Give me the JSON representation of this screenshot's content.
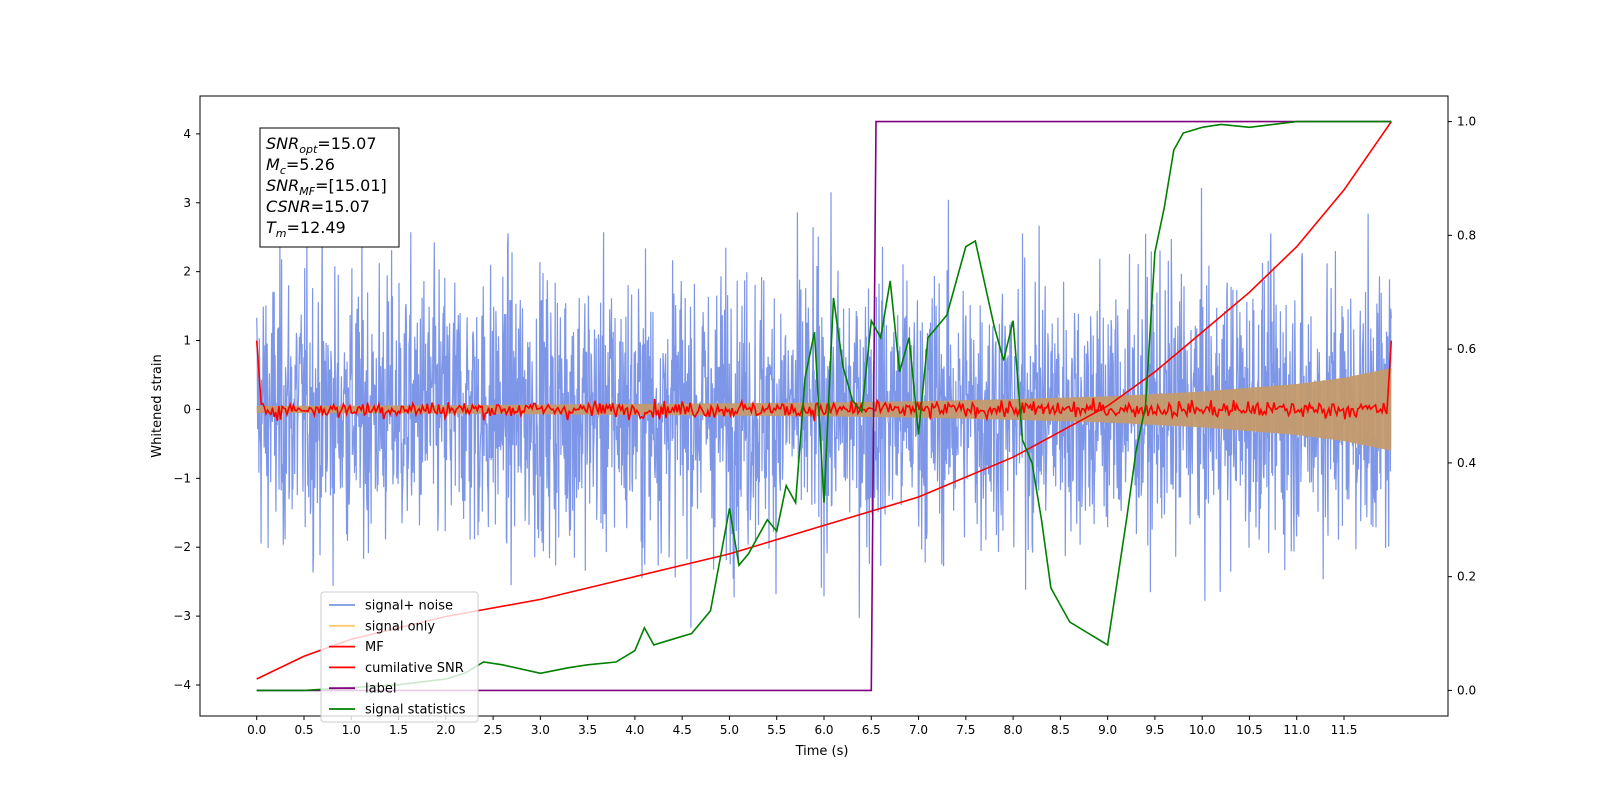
{
  "chart_data": {
    "type": "line",
    "xlabel": "Time (s)",
    "ylabel": "Whitened strain",
    "xlim": [
      -0.6,
      12.6
    ],
    "ylim": [
      -4.45,
      4.55
    ],
    "y2lim": [
      -0.045,
      1.045
    ],
    "x_ticks": [
      "0.0",
      "0.5",
      "1.0",
      "1.5",
      "2.0",
      "2.5",
      "3.0",
      "3.5",
      "4.0",
      "4.5",
      "5.0",
      "5.5",
      "6.0",
      "6.5",
      "7.0",
      "7.5",
      "8.0",
      "8.5",
      "9.0",
      "9.5",
      "10.0",
      "10.5",
      "11.0",
      "11.5"
    ],
    "y_ticks": [
      "4",
      "3",
      "2",
      "1",
      "0",
      "−1",
      "−2",
      "−3",
      "−4"
    ],
    "y2_ticks": [
      "1.0",
      "0.8",
      "0.6",
      "0.4",
      "0.2",
      "0.0"
    ],
    "annotation": [
      {
        "var": "SNR",
        "sub": "opt",
        "value": "=15.07"
      },
      {
        "var": "M",
        "sub": "c",
        "value": "=5.26"
      },
      {
        "var": "SNR",
        "sub": "MF",
        "value": "=[15.01]"
      },
      {
        "var": "CSNR",
        "sub": "",
        "value": "=15.07"
      },
      {
        "var": "T",
        "sub": "m",
        "value": "=12.49"
      }
    ],
    "legend": {
      "placement": "lower left",
      "entries": [
        {
          "label": "signal+ noise",
          "color": "#7b96e8"
        },
        {
          "label": "signal only",
          "color": "#ffc870"
        },
        {
          "label": "MF",
          "color": "#ff0000"
        },
        {
          "label": "cumilative SNR",
          "color": "#ff0000"
        },
        {
          "label": "label",
          "color": "#800080"
        },
        {
          "label": "signal statistics",
          "color": "#008000"
        }
      ]
    },
    "series": [
      {
        "name": "signal+ noise",
        "axis": "left",
        "color": "#6f8be6",
        "sampling": "random noise, approx. ±2.5 typical, extremes near ±4",
        "x_range": [
          0.0,
          12.0
        ],
        "approx_amplitude": 1.0
      },
      {
        "name": "signal only",
        "axis": "left",
        "color": "#c49a6c",
        "x": [
          0.0,
          2.0,
          4.0,
          6.0,
          7.0,
          8.0,
          9.0,
          10.0,
          11.0,
          11.5,
          12.0
        ],
        "envelope": [
          0.05,
          0.06,
          0.08,
          0.1,
          0.12,
          0.15,
          0.19,
          0.26,
          0.37,
          0.46,
          0.6
        ]
      },
      {
        "name": "MF",
        "axis": "left",
        "color": "#ff0000",
        "start_value": 1.0,
        "end_value": 1.0,
        "baseline": 0.0,
        "noise_amplitude": 0.06
      },
      {
        "name": "cumilative SNR",
        "axis": "right",
        "color": "#ff0000",
        "x": [
          0.0,
          0.5,
          1.0,
          2.0,
          3.0,
          4.0,
          5.0,
          6.0,
          7.0,
          8.0,
          9.0,
          9.5,
          10.0,
          10.5,
          11.0,
          11.5,
          12.0
        ],
        "y": [
          0.02,
          0.06,
          0.09,
          0.13,
          0.16,
          0.2,
          0.24,
          0.29,
          0.34,
          0.41,
          0.5,
          0.56,
          0.63,
          0.7,
          0.78,
          0.88,
          1.0
        ]
      },
      {
        "name": "label",
        "axis": "right",
        "color": "#800080",
        "x": [
          0.0,
          6.5,
          6.55,
          12.0
        ],
        "y": [
          0.0,
          0.0,
          1.0,
          1.0
        ]
      },
      {
        "name": "signal statistics",
        "axis": "right",
        "color": "#008000",
        "x": [
          0.0,
          0.5,
          1.0,
          1.5,
          2.0,
          2.2,
          2.4,
          2.6,
          3.0,
          3.3,
          3.5,
          3.8,
          4.0,
          4.1,
          4.2,
          4.4,
          4.6,
          4.8,
          5.0,
          5.1,
          5.2,
          5.4,
          5.5,
          5.6,
          5.7,
          5.8,
          5.9,
          6.0,
          6.1,
          6.2,
          6.3,
          6.4,
          6.5,
          6.6,
          6.7,
          6.8,
          6.9,
          7.0,
          7.1,
          7.3,
          7.5,
          7.6,
          7.8,
          7.9,
          8.0,
          8.1,
          8.2,
          8.3,
          8.4,
          8.6,
          8.8,
          9.0,
          9.2,
          9.3,
          9.4,
          9.5,
          9.6,
          9.7,
          9.8,
          10.0,
          10.2,
          10.5,
          11.0,
          12.0
        ],
        "y": [
          0.0,
          0.0,
          0.005,
          0.01,
          0.02,
          0.03,
          0.05,
          0.045,
          0.03,
          0.04,
          0.045,
          0.05,
          0.07,
          0.11,
          0.08,
          0.09,
          0.1,
          0.14,
          0.32,
          0.22,
          0.24,
          0.3,
          0.28,
          0.36,
          0.33,
          0.55,
          0.63,
          0.33,
          0.69,
          0.57,
          0.51,
          0.49,
          0.65,
          0.62,
          0.72,
          0.56,
          0.62,
          0.45,
          0.62,
          0.66,
          0.78,
          0.79,
          0.64,
          0.58,
          0.65,
          0.44,
          0.4,
          0.3,
          0.18,
          0.12,
          0.1,
          0.08,
          0.3,
          0.42,
          0.5,
          0.77,
          0.85,
          0.95,
          0.98,
          0.99,
          0.995,
          0.99,
          1.0,
          1.0
        ]
      }
    ]
  }
}
